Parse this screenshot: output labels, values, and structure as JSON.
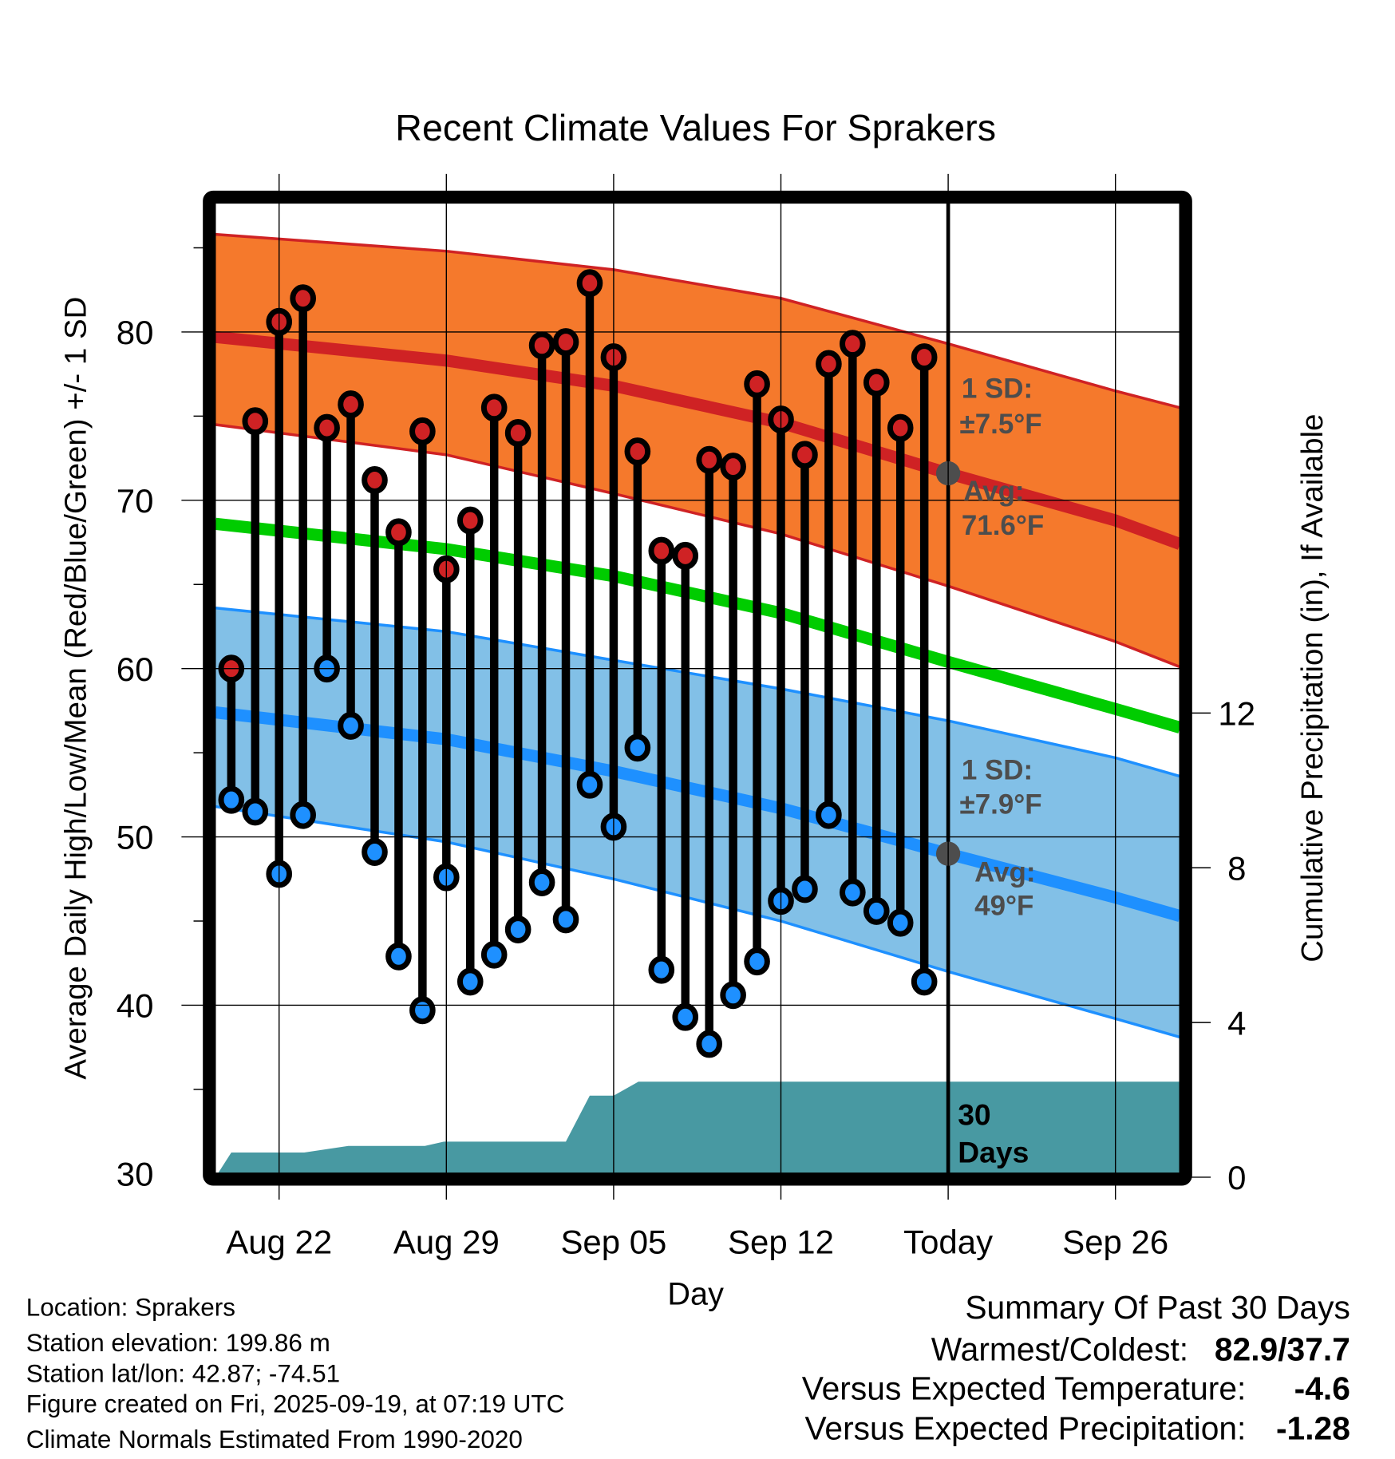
{
  "chart_data": {
    "type": "line",
    "title": "Recent Climate Values For Sprakers",
    "xlabel": "Day",
    "ylabel": "Average Daily High/Low/Mean (Red/Blue/Green) +/- 1 SD",
    "ylabel_right": "Cumulative Precipitation (in), If Available",
    "ylim": [
      30,
      88
    ],
    "ylim_right": [
      0,
      14
    ],
    "yticks": [
      "30",
      "40",
      "50",
      "60",
      "70",
      "80"
    ],
    "yticks_right": [
      "0",
      "4",
      "8",
      "12"
    ],
    "xticks": [
      {
        "label": "Aug 22",
        "day": 2
      },
      {
        "label": "Aug 29",
        "day": 9
      },
      {
        "label": "Sep 05",
        "day": 16
      },
      {
        "label": "Sep 12",
        "day": 23
      },
      {
        "label": "Today",
        "day": 30
      },
      {
        "label": "Sep 26",
        "day": 37
      }
    ],
    "x_origin": "Aug 20",
    "grid": true,
    "daily_high": [
      60.0,
      74.7,
      80.6,
      82.0,
      74.3,
      75.7,
      71.2,
      68.1,
      74.1,
      65.9,
      68.8,
      75.5,
      74.0,
      79.2,
      79.4,
      82.9,
      78.5,
      72.9,
      67.0,
      66.7,
      72.4,
      72.0,
      76.9,
      74.8,
      72.7,
      78.1,
      79.3,
      77.0,
      74.3,
      78.5
    ],
    "daily_low": [
      52.2,
      51.5,
      47.8,
      51.3,
      60.0,
      56.6,
      49.1,
      42.9,
      39.7,
      47.6,
      41.4,
      43.0,
      44.5,
      47.3,
      45.1,
      53.1,
      50.6,
      55.3,
      42.1,
      39.3,
      37.7,
      40.6,
      42.6,
      46.2,
      46.9,
      51.3,
      46.7,
      45.6,
      44.9,
      41.4
    ],
    "normals": {
      "days": [
        -0.66,
        9,
        16,
        23,
        30,
        37,
        39.7
      ],
      "high_mean": [
        79.7,
        78.3,
        76.8,
        74.6,
        71.6,
        68.8,
        67.4
      ],
      "high_upper": [
        85.8,
        84.8,
        83.7,
        82.0,
        79.3,
        76.5,
        75.5
      ],
      "high_lower": [
        74.5,
        72.7,
        70.4,
        68.0,
        64.9,
        61.6,
        60.1
      ],
      "mean": [
        68.6,
        67.1,
        65.5,
        63.3,
        60.4,
        57.6,
        56.5
      ],
      "low_mean": [
        57.4,
        55.8,
        53.9,
        51.7,
        49.0,
        46.4,
        45.3
      ],
      "low_upper": [
        63.6,
        62.2,
        60.5,
        58.8,
        56.9,
        54.7,
        53.6
      ],
      "low_lower": [
        51.8,
        49.7,
        47.5,
        45.0,
        42.0,
        39.2,
        38.1
      ]
    },
    "precip_cumulative": {
      "days": [
        -0.66,
        0,
        3.05,
        4.9,
        8.1,
        8.9,
        14,
        15,
        16,
        17.04,
        39.7
      ],
      "values": [
        0,
        0.64,
        0.64,
        0.81,
        0.81,
        0.92,
        0.92,
        2.11,
        2.11,
        2.47,
        2.47
      ]
    },
    "annotations": {
      "high_sd": "1 SD:",
      "high_sd_val": "±7.5°F",
      "high_avg": "Avg:",
      "high_avg_val": "71.6°F",
      "low_sd": "1 SD:",
      "low_sd_val": "±7.9°F",
      "low_avg": "Avg:",
      "low_avg_val": "49°F",
      "period_num": "30",
      "period_unit": "Days"
    },
    "today_day": 30,
    "today_high_avg": 71.6,
    "today_low_avg": 49.0
  },
  "colors": {
    "high_band": "#f5792c",
    "high_line": "#cf2224",
    "mean_line": "#00cc00",
    "low_band": "#82c0e7",
    "low_line": "#1e90ff",
    "precip": "#4899a2",
    "high_dot": "#cf2224",
    "low_dot": "#1e90ff",
    "annotation": "#4d4d4d",
    "temp_anomaly": "#1e90ff",
    "precip_anomaly": "#a0522d"
  },
  "footer": {
    "location": "Location: Sprakers",
    "elevation": "Station elevation: 199.86 m",
    "latlon": "Station lat/lon: 42.87; -74.51",
    "created": "Figure created on Fri, 2025-09-19, at 07:19 UTC",
    "normals": "Climate Normals Estimated From 1990-2020"
  },
  "summary": {
    "title": "Summary Of Past 30 Days",
    "warm_cold_label": "Warmest/Coldest:",
    "warm_cold_value": "82.9/37.7",
    "temp_label": "Versus Expected Temperature:",
    "temp_value": "-4.6",
    "precip_label": "Versus Expected Precipitation:",
    "precip_value": "-1.28"
  }
}
